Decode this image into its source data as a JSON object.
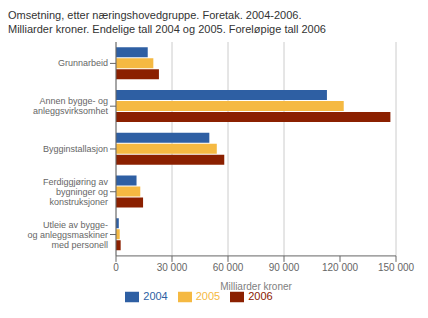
{
  "chart_data": {
    "type": "bar",
    "orientation": "horizontal",
    "title": "Omsetning, etter næringshovedgruppe. Foretak. 2004-2006.",
    "subtitle": "Milliarder kroner. Endelige tall 2004 og 2005. Foreløpige tall 2006",
    "categories": [
      "Grunnarbeid",
      "Annen bygge- og\nanleggsvirksomhet",
      "Bygginstallasjon",
      "Ferdiggjøring av\nbygninger og\nkonstruksjoner",
      "Utleie av bygge-\nog anleggsmaskiner\nmed personell"
    ],
    "series": [
      {
        "name": "2004",
        "color": "#2e5fa3",
        "values": [
          17000,
          113000,
          50000,
          11000,
          1500
        ]
      },
      {
        "name": "2005",
        "color": "#f5b942",
        "values": [
          20000,
          122000,
          54000,
          13000,
          2000
        ]
      },
      {
        "name": "2006",
        "color": "#8b2000",
        "values": [
          23000,
          147000,
          58000,
          14500,
          2500
        ]
      }
    ],
    "xlabel": "Milliarder kroner",
    "xlim": [
      0,
      150000
    ],
    "xticks": [
      0,
      {
        "value": 30000,
        "label": "30 000"
      },
      {
        "value": 60000,
        "label": "60 000"
      },
      {
        "value": 90000,
        "label": "90 000"
      },
      {
        "value": 120000,
        "label": "120 000"
      },
      {
        "value": 150000,
        "label": "150 000"
      }
    ],
    "grid": true,
    "legend": "bottom"
  }
}
